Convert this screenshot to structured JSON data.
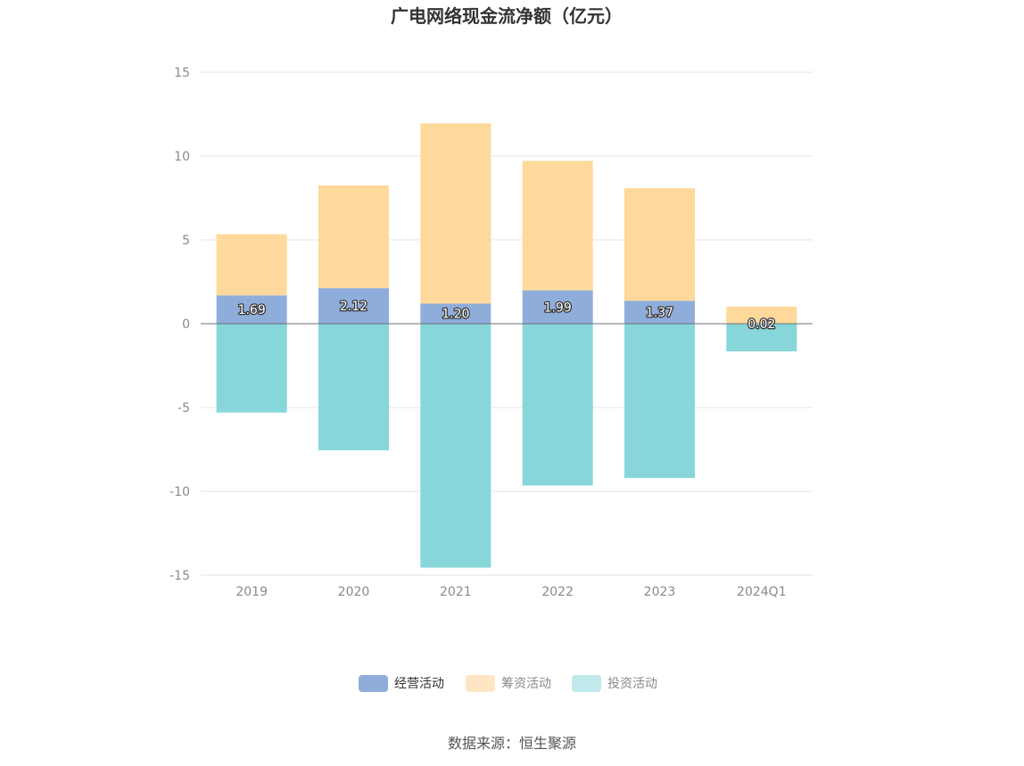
{
  "chart_data": {
    "type": "bar",
    "stacked": true,
    "title": "广电网络现金流净额（亿元）",
    "categories": [
      "2019",
      "2020",
      "2021",
      "2022",
      "2023",
      "2024Q1"
    ],
    "ylim": [
      -15,
      15
    ],
    "yticks": [
      15,
      10,
      5,
      0,
      -5,
      -10,
      -15
    ],
    "grid": true,
    "legend_position": "bottom",
    "series": [
      {
        "name": "经营活动",
        "color": "#8fadda",
        "values": [
          1.69,
          2.12,
          1.2,
          1.99,
          1.37,
          0.02
        ],
        "labels": [
          "1.69",
          "2.12",
          "1.20",
          "1.99",
          "1.37",
          "0.02"
        ]
      },
      {
        "name": "筹资活动",
        "color": "#fed99b",
        "values": [
          3.65,
          6.13,
          10.75,
          7.72,
          6.71,
          1.0
        ]
      },
      {
        "name": "投资活动",
        "color": "#87d6d9",
        "values": [
          -5.3,
          -7.55,
          -14.55,
          -9.65,
          -9.2,
          -1.65
        ]
      }
    ],
    "source": "数据来源：恒生聚源"
  },
  "legend_colors": {
    "经营活动": "#8fadda",
    "筹资活动": "#fee6c4",
    "投资活动": "#c1e9eb"
  }
}
